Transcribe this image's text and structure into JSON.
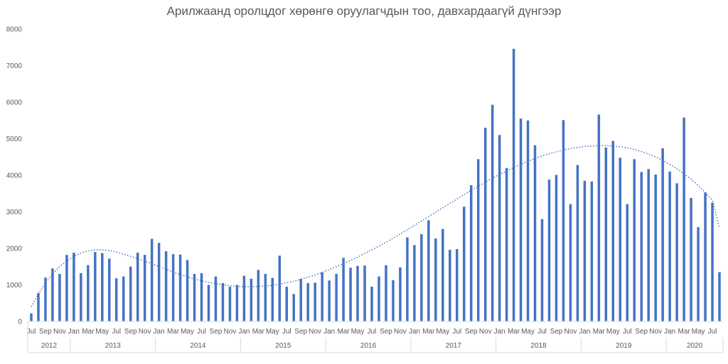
{
  "chart_data": {
    "type": "bar",
    "title": "Арилжаанд оролцдог хөрөнгө оруулагчдын тоо, давхардаагүй дүнгээр",
    "xlabel": "",
    "ylabel": "",
    "ylim": [
      0,
      8000
    ],
    "yticks": [
      0,
      1000,
      2000,
      3000,
      4000,
      5000,
      6000,
      7000,
      8000
    ],
    "grid": false,
    "legend": "none",
    "bar_color": "#4472C4",
    "trend_color": "#4472C4",
    "trendline": "polynomial, dotted",
    "month_labels": [
      "Jul",
      "Sep",
      "Nov",
      "Jan",
      "Mar",
      "May",
      "Jul",
      "Sep",
      "Nov",
      "Jan",
      "Mar",
      "May",
      "Jul",
      "Sep",
      "Nov",
      "Jan",
      "Mar",
      "May",
      "Jul",
      "Sep",
      "Nov",
      "Jan",
      "Mar",
      "May",
      "Jul",
      "Sep",
      "Nov",
      "Jan",
      "Mar",
      "May",
      "Jul",
      "Sep",
      "Nov",
      "Jan",
      "Mar",
      "May",
      "Jul",
      "Sep",
      "Nov",
      "Jan",
      "Mar",
      "May",
      "Jul",
      "Sep",
      "Nov",
      "Jan",
      "Mar",
      "May",
      "Jul"
    ],
    "year_groups": [
      {
        "year": "2012",
        "months": 6
      },
      {
        "year": "2013",
        "months": 12
      },
      {
        "year": "2014",
        "months": 12
      },
      {
        "year": "2015",
        "months": 12
      },
      {
        "year": "2016",
        "months": 12
      },
      {
        "year": "2017",
        "months": 12
      },
      {
        "year": "2018",
        "months": 12
      },
      {
        "year": "2019",
        "months": 12
      },
      {
        "year": "2020",
        "months": 8
      }
    ],
    "values": [
      220,
      780,
      1200,
      1450,
      1300,
      1820,
      1880,
      1320,
      1540,
      1900,
      1870,
      1720,
      1180,
      1230,
      1500,
      1880,
      1820,
      2260,
      2150,
      1920,
      1840,
      1830,
      1680,
      1300,
      1320,
      1000,
      1230,
      1050,
      950,
      1000,
      1250,
      1170,
      1410,
      1300,
      1190,
      1800,
      950,
      750,
      1170,
      1050,
      1060,
      1340,
      1120,
      1300,
      1740,
      1470,
      1520,
      1530,
      950,
      1230,
      1540,
      1130,
      1480,
      2300,
      2090,
      2390,
      2770,
      2270,
      2530,
      1960,
      1980,
      3140,
      3730,
      4440,
      5300,
      5930,
      5100,
      4200,
      7460,
      5550,
      5500,
      4820,
      2800,
      3880,
      4010,
      5510,
      3210,
      4280,
      3850,
      3830,
      5660,
      4760,
      4940,
      4480,
      3210,
      4440,
      4090,
      4170,
      4020,
      4740,
      4100,
      3780,
      5580,
      3380,
      2580,
      3530,
      3250,
      1350
    ],
    "trend_values": [
      400,
      750,
      1050,
      1300,
      1500,
      1650,
      1780,
      1870,
      1930,
      1960,
      1960,
      1940,
      1900,
      1840,
      1780,
      1720,
      1650,
      1580,
      1500,
      1430,
      1350,
      1280,
      1220,
      1160,
      1110,
      1070,
      1030,
      1000,
      980,
      960,
      950,
      950,
      960,
      970,
      990,
      1020,
      1060,
      1100,
      1150,
      1210,
      1270,
      1340,
      1420,
      1500,
      1580,
      1670,
      1760,
      1860,
      1960,
      2060,
      2170,
      2280,
      2390,
      2510,
      2630,
      2750,
      2870,
      2990,
      3110,
      3230,
      3350,
      3470,
      3590,
      3700,
      3810,
      3920,
      4020,
      4120,
      4210,
      4300,
      4380,
      4460,
      4530,
      4590,
      4640,
      4690,
      4730,
      4760,
      4790,
      4800,
      4810,
      4810,
      4800,
      4780,
      4750,
      4710,
      4650,
      4580,
      4500,
      4410,
      4300,
      4180,
      4040,
      3890,
      3720,
      3530,
      3320,
      2550
    ]
  }
}
